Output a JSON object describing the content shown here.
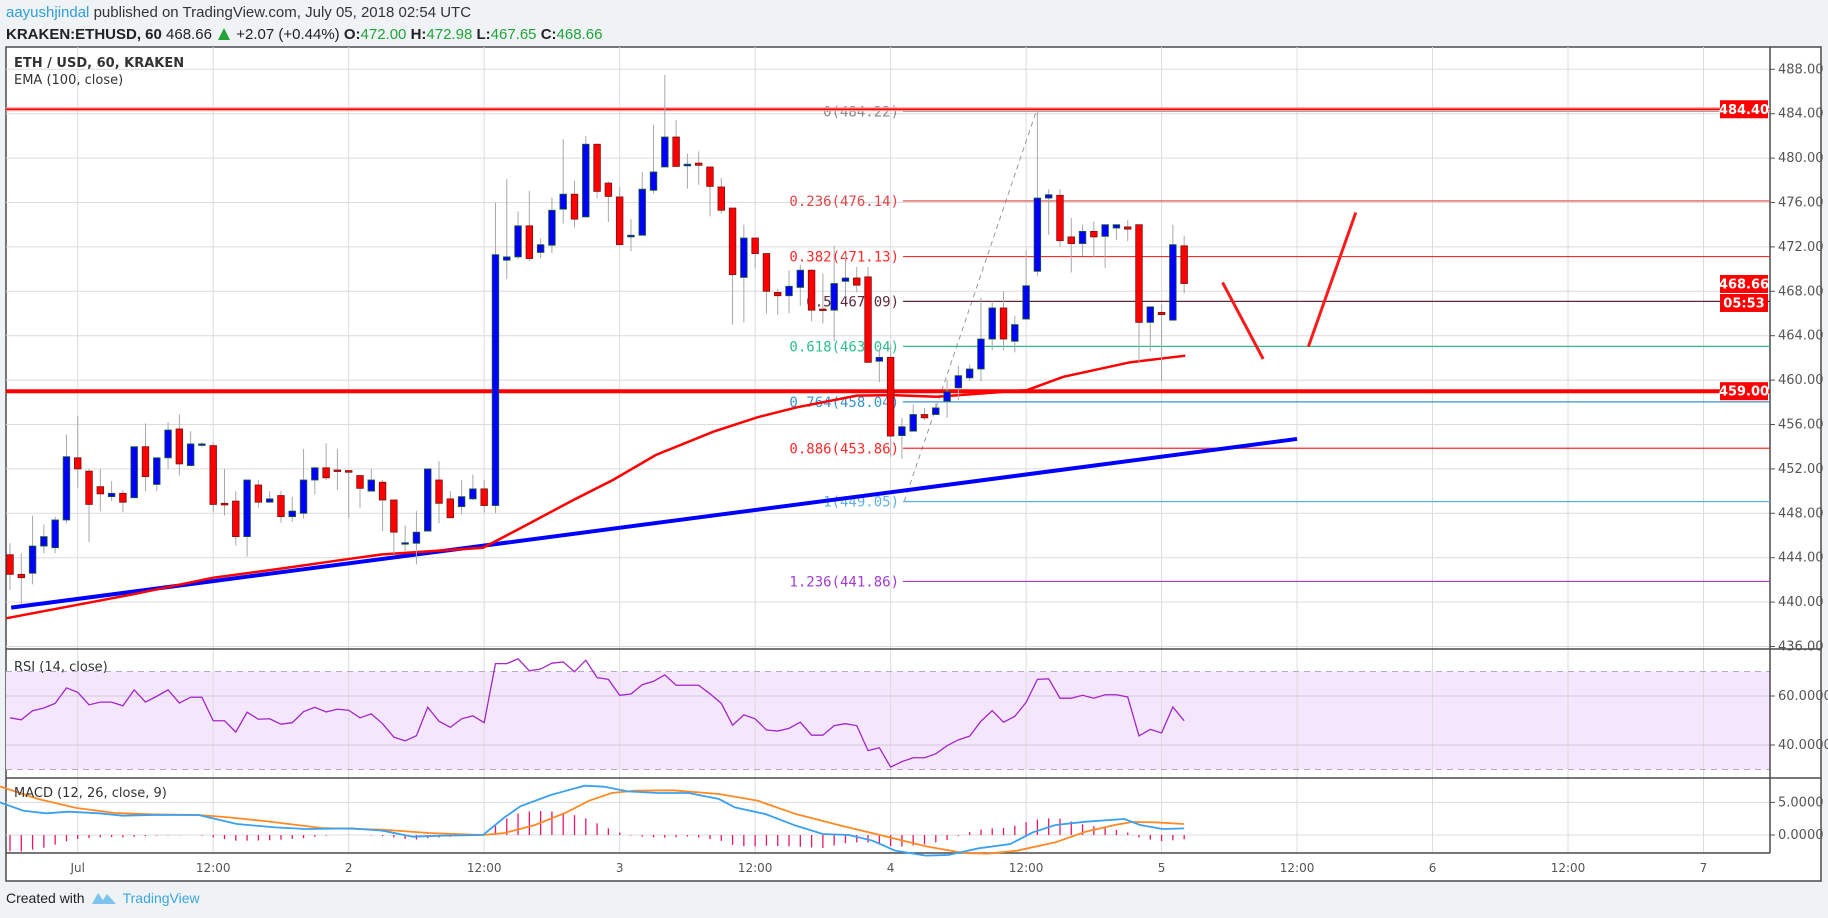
{
  "header": {
    "author": "aayushjindal",
    "published": "published on TradingView.com, July 05, 2018 02:54 UTC",
    "symbol": "KRAKEN:ETHUSD, 60",
    "last": "468.66",
    "change": "+2.07 (+0.44%)",
    "o_label": "O:",
    "o": "472.00",
    "h_label": "H:",
    "h": "472.98",
    "l_label": "L:",
    "l": "467.65",
    "c_label": "C:",
    "c": "468.66"
  },
  "footer": {
    "created_with": "Created with",
    "brand": "TradingView"
  },
  "colors": {
    "up": "#0000ff",
    "down": "#ff0000",
    "ema": "#ff0000",
    "trend": "#0000ff",
    "rsi": "#a426c8",
    "macd": "#3aa0f0",
    "signal": "#ff8a26",
    "hist": "#e8156a"
  },
  "chart_data": {
    "type": "candlestick",
    "title": "ETH / USD, 60, KRAKEN",
    "indicator_label": "EMA (100, close)",
    "ylim": [
      436,
      488
    ],
    "price_ticks": [
      "488.00",
      "484.00",
      "480.00",
      "476.00",
      "472.00",
      "468.00",
      "464.00",
      "460.00",
      "456.00",
      "452.00",
      "448.00",
      "444.00",
      "440.00",
      "436.00"
    ],
    "price_tick_values": [
      488,
      484,
      480,
      476,
      472,
      468,
      464,
      460,
      456,
      452,
      448,
      444,
      440,
      436
    ],
    "time_axis": [
      {
        "label": "Jul",
        "index": 7
      },
      {
        "label": "12:00",
        "index": 19
      },
      {
        "label": "2",
        "index": 31
      },
      {
        "label": "12:00",
        "index": 43
      },
      {
        "label": "3",
        "index": 55
      },
      {
        "label": "12:00",
        "index": 67
      },
      {
        "label": "4",
        "index": 79
      },
      {
        "label": "12:00",
        "index": 91
      },
      {
        "label": "5",
        "index": 103
      },
      {
        "label": "12:00",
        "index": 115
      },
      {
        "label": "6",
        "index": 127
      },
      {
        "label": "12:00",
        "index": 139
      },
      {
        "label": "7",
        "index": 151
      }
    ],
    "candles_ohlc": [
      [
        444.27,
        445.3,
        441.1,
        442.5
      ],
      [
        442.5,
        444.4,
        439.8,
        442.2
      ],
      [
        442.6,
        447.8,
        441.6,
        445.05
      ],
      [
        445.05,
        447.0,
        444.4,
        445.9
      ],
      [
        444.9,
        447.7,
        444.4,
        447.4
      ],
      [
        447.4,
        455.1,
        447.1,
        453.1
      ],
      [
        453.0,
        456.75,
        450.3,
        452.0
      ],
      [
        451.8,
        452.0,
        445.4,
        448.8
      ],
      [
        450.4,
        452.0,
        448.2,
        449.75
      ],
      [
        449.5,
        450.9,
        449.1,
        449.8
      ],
      [
        449.8,
        450.1,
        448.1,
        449.0
      ],
      [
        449.4,
        454.0,
        449.4,
        454.0
      ],
      [
        454.0,
        456.1,
        450.0,
        451.3
      ],
      [
        450.6,
        453.0,
        450.0,
        453.0
      ],
      [
        453.0,
        456.2,
        452.0,
        455.5
      ],
      [
        455.6,
        456.9,
        451.4,
        452.45
      ],
      [
        452.3,
        455.4,
        452.3,
        454.25
      ],
      [
        454.2,
        454.4,
        454.0,
        454.25
      ],
      [
        454.1,
        454.4,
        448.1,
        448.8
      ],
      [
        448.9,
        452.0,
        447.8,
        448.75
      ],
      [
        449.1,
        450.0,
        445.1,
        445.9
      ],
      [
        445.9,
        451.0,
        444.1,
        451.0
      ],
      [
        450.55,
        451.0,
        448.5,
        449.0
      ],
      [
        449.0,
        450.0,
        449.0,
        449.3
      ],
      [
        449.6,
        450.0,
        447.15,
        447.7
      ],
      [
        447.7,
        449.5,
        447.2,
        448.2
      ],
      [
        448.0,
        453.8,
        447.5,
        451.0
      ],
      [
        451.0,
        452.2,
        449.7,
        452.1
      ],
      [
        452.1,
        454.3,
        451.0,
        451.2
      ],
      [
        451.9,
        453.8,
        450.1,
        451.85
      ],
      [
        451.85,
        451.9,
        447.55,
        451.7
      ],
      [
        451.4,
        451.4,
        448.5,
        450.25
      ],
      [
        450.0,
        452.0,
        450.0,
        451.0
      ],
      [
        450.8,
        451.0,
        446.4,
        449.2
      ],
      [
        449.2,
        449.2,
        444.3,
        446.3
      ],
      [
        445.3,
        446.9,
        444.6,
        445.35
      ],
      [
        445.3,
        448.2,
        443.4,
        446.3
      ],
      [
        446.4,
        452.0,
        446.4,
        452.0
      ],
      [
        451.0,
        452.7,
        447.1,
        448.9
      ],
      [
        449.3,
        450.0,
        447.6,
        447.6
      ],
      [
        448.6,
        451.0,
        447.9,
        449.5
      ],
      [
        449.3,
        451.5,
        449.2,
        450.2
      ],
      [
        450.2,
        451.0,
        448.1,
        448.7
      ],
      [
        448.7,
        476.0,
        448.0,
        471.3
      ],
      [
        470.8,
        478.1,
        469.1,
        471.1
      ],
      [
        471.1,
        475.2,
        470.9,
        473.9
      ],
      [
        473.9,
        477.05,
        470.7,
        470.95
      ],
      [
        471.5,
        472.75,
        471.0,
        472.2
      ],
      [
        472.15,
        476.45,
        471.45,
        475.3
      ],
      [
        475.4,
        481.7,
        474.1,
        476.75
      ],
      [
        476.75,
        477.95,
        473.75,
        474.5
      ],
      [
        474.7,
        482.0,
        474.65,
        481.25
      ],
      [
        481.25,
        481.3,
        476.4,
        477.0
      ],
      [
        477.75,
        477.9,
        474.25,
        476.55
      ],
      [
        476.5,
        477.4,
        472.2,
        472.2
      ],
      [
        472.9,
        474.5,
        471.6,
        473.05
      ],
      [
        473.05,
        478.75,
        473.05,
        477.2
      ],
      [
        477.1,
        483.0,
        476.8,
        478.75
      ],
      [
        479.2,
        487.5,
        479.2,
        481.9
      ],
      [
        481.9,
        483.45,
        479.25,
        479.25
      ],
      [
        479.3,
        480.4,
        477.25,
        479.45
      ],
      [
        479.55,
        480.6,
        477.6,
        479.35
      ],
      [
        479.2,
        479.2,
        474.75,
        477.45
      ],
      [
        477.4,
        478.2,
        475.0,
        475.3
      ],
      [
        475.5,
        475.5,
        465.0,
        469.5
      ],
      [
        469.25,
        474.0,
        465.2,
        472.8
      ],
      [
        472.8,
        472.8,
        470.05,
        471.4
      ],
      [
        471.4,
        471.4,
        466.0,
        468.0
      ],
      [
        467.9,
        468.2,
        465.9,
        467.6
      ],
      [
        467.6,
        469.9,
        466.0,
        468.45
      ],
      [
        468.35,
        470.4,
        466.7,
        469.9
      ],
      [
        469.9,
        470.0,
        465.3,
        466.3
      ],
      [
        466.4,
        469.6,
        465.1,
        466.3
      ],
      [
        466.3,
        472.1,
        463.5,
        468.7
      ],
      [
        468.9,
        471.4,
        467.5,
        469.2
      ],
      [
        469.2,
        470.2,
        467.9,
        468.55
      ],
      [
        469.3,
        470.2,
        461.6,
        461.6
      ],
      [
        461.7,
        462.8,
        459.8,
        462.05
      ],
      [
        462.05,
        463.2,
        453.1,
        454.96
      ],
      [
        455.0,
        456.6,
        452.9,
        455.8
      ],
      [
        455.4,
        457.8,
        455.4,
        456.9
      ],
      [
        456.9,
        457.5,
        456.4,
        456.6
      ],
      [
        456.9,
        457.9,
        456.9,
        457.5
      ],
      [
        458.1,
        460.0,
        456.6,
        458.96
      ],
      [
        459.3,
        461.3,
        458.2,
        460.4
      ],
      [
        460.2,
        461.4,
        459.9,
        461.0
      ],
      [
        461.0,
        467.4,
        459.9,
        463.7
      ],
      [
        463.7,
        467.1,
        462.7,
        466.5
      ],
      [
        466.5,
        468.0,
        462.7,
        463.7
      ],
      [
        463.5,
        465.8,
        462.5,
        465.0
      ],
      [
        465.5,
        471.7,
        465.5,
        468.5
      ],
      [
        469.8,
        484.2,
        469.4,
        476.4
      ],
      [
        476.4,
        477.2,
        473.1,
        476.7
      ],
      [
        476.65,
        477.2,
        472.0,
        472.56
      ],
      [
        472.9,
        474.6,
        469.7,
        472.3
      ],
      [
        472.3,
        474.0,
        471.2,
        473.4
      ],
      [
        473.4,
        474.3,
        471.1,
        472.9
      ],
      [
        472.95,
        474.0,
        470.1,
        474.0
      ],
      [
        473.7,
        474.0,
        472.6,
        474.0
      ],
      [
        473.8,
        474.4,
        472.5,
        473.6
      ],
      [
        474.0,
        474.0,
        461.5,
        465.2
      ],
      [
        465.2,
        466.6,
        462.6,
        466.6
      ],
      [
        466.1,
        466.8,
        459.9,
        465.9
      ],
      [
        465.4,
        474.0,
        465.4,
        472.2
      ],
      [
        472.1,
        473.0,
        467.8,
        468.7
      ]
    ],
    "ema100": [
      [
        0.7,
        438.55
      ],
      [
        7.2,
        439.8
      ],
      [
        11.9,
        440.7
      ],
      [
        19.0,
        442.2
      ],
      [
        24.9,
        443.0
      ],
      [
        31.1,
        443.9
      ],
      [
        34.0,
        444.3
      ],
      [
        42.9,
        444.9
      ],
      [
        46.2,
        446.65
      ],
      [
        50.9,
        449.2
      ],
      [
        54.4,
        451.0
      ],
      [
        58.2,
        453.25
      ],
      [
        63.3,
        455.35
      ],
      [
        67.2,
        456.65
      ],
      [
        70.7,
        457.55
      ],
      [
        76.0,
        458.6
      ],
      [
        79.2,
        458.65
      ],
      [
        83.1,
        458.5
      ],
      [
        91.1,
        459.1
      ],
      [
        94.3,
        460.3
      ],
      [
        100.2,
        461.6
      ],
      [
        105.1,
        462.2
      ]
    ],
    "trendline": [
      [
        1.1,
        439.5
      ],
      [
        115.0,
        454.7
      ]
    ],
    "horizontal_levels": [
      {
        "value": 484.4,
        "label": "484.40"
      },
      {
        "value": 459.0,
        "label": "459.00"
      }
    ],
    "last_price_label": "468.66",
    "countdown_label": "05:53",
    "last_price": 468.66,
    "fib_anchor": [
      [
        80.2,
        449.05
      ],
      [
        91.9,
        484.22
      ]
    ],
    "fib_levels": [
      {
        "label": "0(484.22)",
        "value": 484.22,
        "color": "#8a8a8a"
      },
      {
        "label": "0.236(476.14)",
        "value": 476.14,
        "color": "#e04545"
      },
      {
        "label": "0.382(471.13)",
        "value": 471.13,
        "color": "#ff2a2a"
      },
      {
        "label": "0.5(467.09)",
        "value": 467.09,
        "color": "#5e2a3a"
      },
      {
        "label": "0.618(463.04)",
        "value": 463.04,
        "color": "#2ec08c"
      },
      {
        "label": "0.764(458.04)",
        "value": 458.04,
        "color": "#3a93cc"
      },
      {
        "label": "0.886(453.86)",
        "value": 453.86,
        "color": "#ff2a2a"
      },
      {
        "label": "1(449.05)",
        "value": 449.05,
        "color": "#62b3e2"
      },
      {
        "label": "1.236(441.86)",
        "value": 441.86,
        "color": "#a03cd4"
      }
    ],
    "drawn_lines": [
      [
        [
          108.4,
          468.8
        ],
        [
          112.0,
          461.9
        ]
      ],
      [
        [
          116.0,
          463.0
        ],
        [
          120.2,
          475.1
        ]
      ]
    ],
    "rsi": {
      "label": "RSI (14, close)",
      "ticks": [
        {
          "label": "60.0000",
          "value": 60
        },
        {
          "label": "40.0000",
          "value": 40
        }
      ],
      "band": [
        30,
        70
      ],
      "values": [
        51.1,
        50.3,
        54.0,
        55.1,
        57.0,
        63.3,
        61.5,
        56.4,
        57.5,
        57.5,
        56.0,
        62.5,
        57.5,
        59.9,
        62.5,
        57.1,
        59.5,
        59.5,
        49.9,
        49.9,
        45.3,
        53.4,
        50.5,
        50.7,
        48.5,
        49.1,
        53.6,
        55.4,
        53.5,
        54.6,
        54.2,
        51.1,
        52.7,
        48.7,
        43.2,
        41.7,
        43.8,
        55.4,
        49.7,
        47.2,
        50.7,
        51.9,
        49.1,
        73.2,
        73.2,
        75.2,
        70.3,
        71.0,
        73.4,
        73.9,
        69.9,
        74.6,
        67.5,
        66.8,
        60.3,
        60.8,
        64.6,
        66.0,
        68.6,
        64.4,
        64.4,
        64.4,
        60.9,
        57.0,
        48.1,
        52.3,
        50.7,
        46.1,
        45.7,
        46.8,
        49.3,
        44.0,
        44.0,
        47.9,
        48.7,
        47.9,
        37.7,
        38.9,
        31.0,
        33.2,
        34.8,
        34.8,
        36.4,
        39.7,
        42.1,
        43.6,
        49.7,
        54.0,
        49.3,
        51.7,
        57.4,
        66.8,
        67.0,
        59.1,
        59.1,
        60.3,
        59.1,
        60.5,
        60.5,
        59.6,
        43.7,
        46.4,
        44.9,
        55.5,
        49.9
      ]
    },
    "macd": {
      "label": "MACD (12, 26, close, 9)",
      "ticks": [
        {
          "label": "5.0000",
          "value": 5
        },
        {
          "label": "0.0000",
          "value": 0
        }
      ],
      "macd": [
        [
          0.1,
          5.0
        ],
        [
          2.2,
          3.72
        ],
        [
          4.2,
          3.32
        ],
        [
          6.2,
          3.57
        ],
        [
          8.9,
          3.32
        ],
        [
          11.0,
          2.96
        ],
        [
          13.7,
          3.06
        ],
        [
          17.7,
          3.06
        ],
        [
          21.1,
          1.68
        ],
        [
          24.5,
          1.17
        ],
        [
          27.2,
          0.92
        ],
        [
          31.3,
          1.02
        ],
        [
          34.0,
          0.66
        ],
        [
          36.7,
          -0.26
        ],
        [
          39.4,
          -0.1
        ],
        [
          42.9,
          0
        ],
        [
          44.8,
          2.7
        ],
        [
          46.2,
          4.39
        ],
        [
          48.9,
          6.12
        ],
        [
          50.6,
          6.94
        ],
        [
          51.9,
          7.55
        ],
        [
          53.6,
          7.4
        ],
        [
          55.7,
          6.68
        ],
        [
          58.4,
          6.43
        ],
        [
          61.1,
          6.43
        ],
        [
          63.8,
          5.51
        ],
        [
          65.2,
          4.23
        ],
        [
          67.9,
          3.21
        ],
        [
          70.6,
          1.43
        ],
        [
          73.0,
          0.15
        ],
        [
          75.3,
          0
        ],
        [
          77.4,
          -0.87
        ],
        [
          79.4,
          -2.4
        ],
        [
          82.1,
          -3.16
        ],
        [
          84.1,
          -3.06
        ],
        [
          86.8,
          -2.04
        ],
        [
          89.6,
          -1.38
        ],
        [
          91.6,
          0.41
        ],
        [
          93.6,
          1.53
        ],
        [
          96.3,
          2.04
        ],
        [
          99.7,
          2.45
        ],
        [
          101.1,
          1.53
        ],
        [
          103.1,
          0.92
        ],
        [
          105,
          1.02
        ]
      ],
      "signal": [
        [
          0.1,
          7.45
        ],
        [
          3.5,
          5.51
        ],
        [
          6.9,
          4.13
        ],
        [
          10.3,
          3.37
        ],
        [
          13.7,
          3.16
        ],
        [
          17.7,
          3.06
        ],
        [
          20.4,
          2.7
        ],
        [
          23.8,
          2.09
        ],
        [
          28.6,
          1.07
        ],
        [
          34.0,
          0.82
        ],
        [
          38.1,
          0.31
        ],
        [
          42.9,
          0
        ],
        [
          44.8,
          0.31
        ],
        [
          47.5,
          1.53
        ],
        [
          50.3,
          3.47
        ],
        [
          52.3,
          5.26
        ],
        [
          54.3,
          6.43
        ],
        [
          56.4,
          6.79
        ],
        [
          59.7,
          6.84
        ],
        [
          63.8,
          6.28
        ],
        [
          67.2,
          5.26
        ],
        [
          70.6,
          3.21
        ],
        [
          74.6,
          1.43
        ],
        [
          78.7,
          -0.26
        ],
        [
          82.1,
          -1.73
        ],
        [
          85.5,
          -2.76
        ],
        [
          87.5,
          -2.86
        ],
        [
          90.2,
          -2.4
        ],
        [
          93.6,
          -1.12
        ],
        [
          96.3,
          0.51
        ],
        [
          99.0,
          1.58
        ],
        [
          100.4,
          1.99
        ],
        [
          102.4,
          1.94
        ],
        [
          105,
          1.68
        ]
      ]
    }
  }
}
